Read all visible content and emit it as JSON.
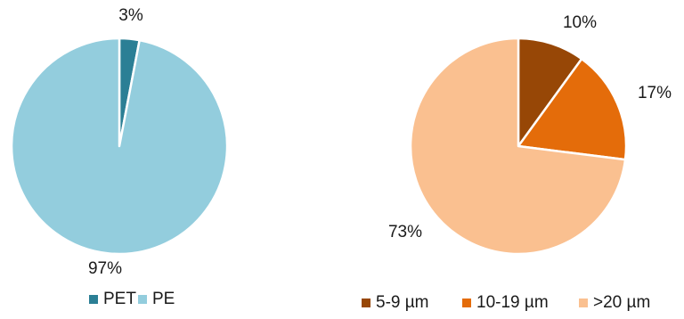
{
  "chart_data": [
    {
      "type": "pie",
      "title": "",
      "slices": [
        {
          "label": "PET",
          "value": 3,
          "display": "3%",
          "color": "#2b7f95"
        },
        {
          "label": "PE",
          "value": 97,
          "display": "97%",
          "color": "#93cddd"
        }
      ],
      "legend": {
        "position": "bottom",
        "entries": [
          "PET",
          "PE"
        ]
      }
    },
    {
      "type": "pie",
      "title": "",
      "slices": [
        {
          "label": "5-9 µm",
          "value": 10,
          "display": "10%",
          "color": "#974706"
        },
        {
          "label": "10-19 µm",
          "value": 17,
          "display": "17%",
          "color": "#e46c0a"
        },
        {
          "label": ">20  µm",
          "value": 73,
          "display": "73%",
          "color": "#fac090"
        }
      ],
      "legend": {
        "position": "bottom",
        "entries": [
          "5-9 µm",
          "10-19 µm",
          ">20  µm"
        ]
      }
    }
  ]
}
